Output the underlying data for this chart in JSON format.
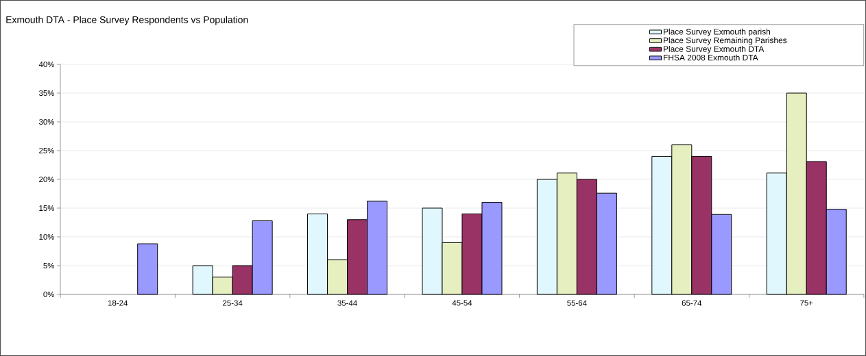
{
  "chart_data": {
    "type": "bar",
    "title": "Exmouth DTA - Place Survey Respondents vs Population",
    "categories": [
      "18-24",
      "25-34",
      "35-44",
      "45-54",
      "55-64",
      "65-74",
      "75+"
    ],
    "series": [
      {
        "name": "Place Survey Exmouth parish",
        "color": "#e0f7fd",
        "values": [
          null,
          5,
          14,
          15,
          20,
          24,
          21.1
        ]
      },
      {
        "name": "Place Survey Remaining Parishes",
        "color": "#e5efbf",
        "values": [
          null,
          3,
          6,
          9,
          21.1,
          26,
          35
        ]
      },
      {
        "name": "Place Survey Exmouth DTA",
        "color": "#993366",
        "values": [
          null,
          5,
          13,
          14,
          20,
          24,
          23.1
        ]
      },
      {
        "name": "FHSA 2008 Exmouth DTA",
        "color": "#9999ff",
        "values": [
          8.8,
          12.8,
          16.2,
          16,
          17.6,
          13.9,
          14.8
        ]
      }
    ],
    "ylim": [
      0,
      40
    ],
    "yticks": [
      {
        "value": 0,
        "label": "0%"
      },
      {
        "value": 5,
        "label": "5%"
      },
      {
        "value": 10,
        "label": "10%"
      },
      {
        "value": 15,
        "label": "15%"
      },
      {
        "value": 20,
        "label": "20%"
      },
      {
        "value": 25,
        "label": "25%"
      },
      {
        "value": 30,
        "label": "30%"
      },
      {
        "value": 35,
        "label": "35%"
      },
      {
        "value": 40,
        "label": "40%"
      }
    ],
    "grid": "y",
    "legend": "top right"
  }
}
